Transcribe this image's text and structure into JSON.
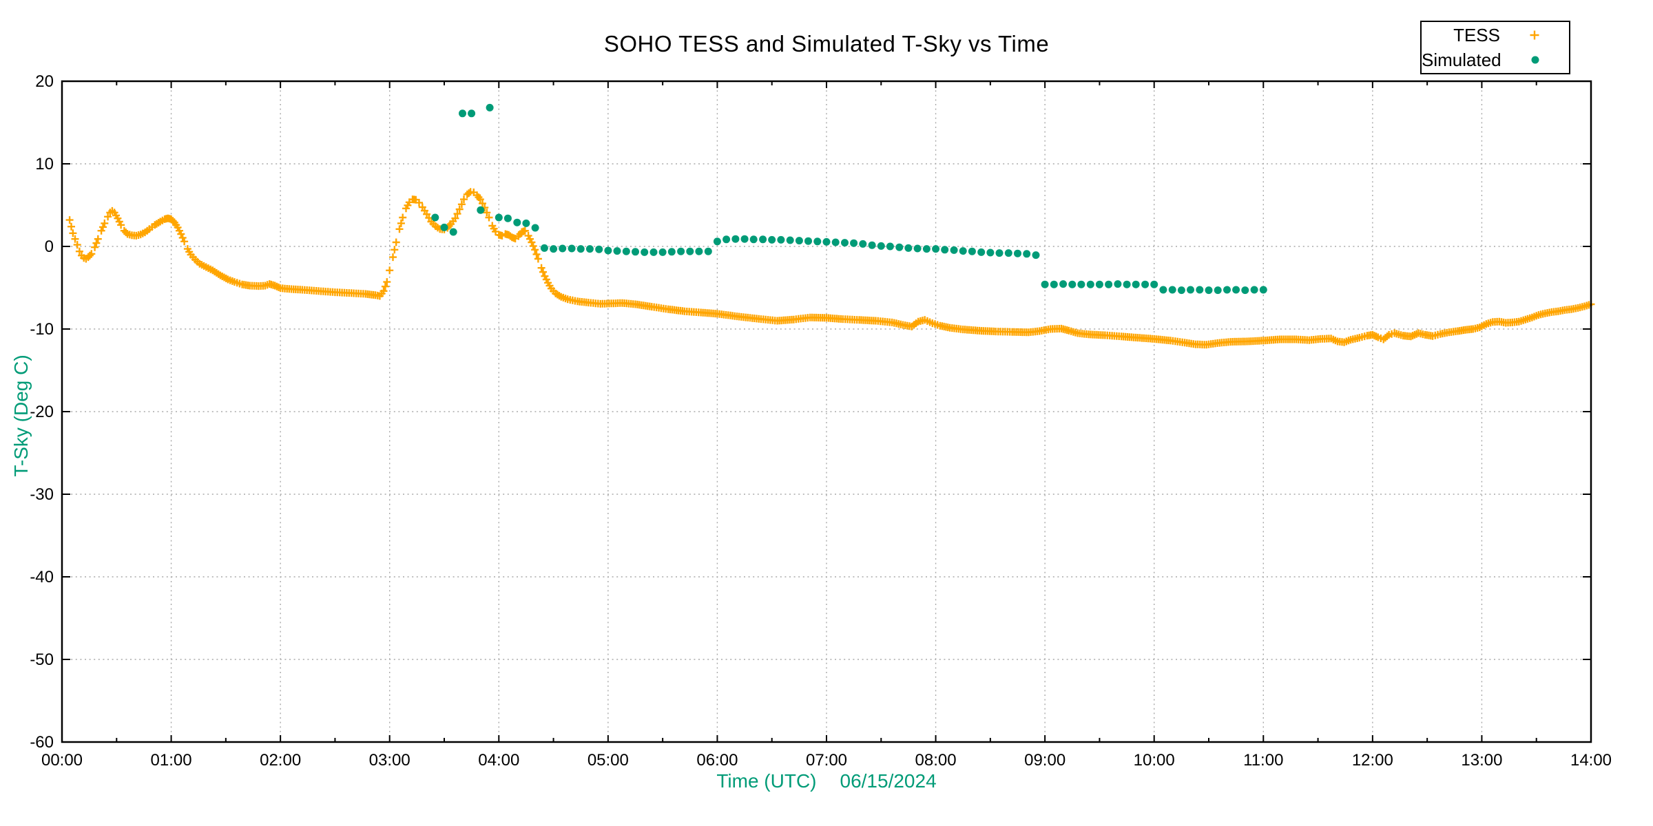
{
  "chart_data": {
    "type": "scatter",
    "title": "SOHO TESS and Simulated T-Sky vs Time",
    "xlabel": "Time (UTC)",
    "date_label": "06/15/2024",
    "ylabel": "T-Sky (Deg C)",
    "axis_label_color": "#009B77",
    "grid": true,
    "xlim": [
      0,
      14
    ],
    "ylim": [
      -60,
      20
    ],
    "x_tick_hours": [
      0,
      1,
      2,
      3,
      4,
      5,
      6,
      7,
      8,
      9,
      10,
      11,
      12,
      13,
      14
    ],
    "x_tick_labels": [
      "00:00",
      "01:00",
      "02:00",
      "03:00",
      "04:00",
      "05:00",
      "06:00",
      "07:00",
      "08:00",
      "09:00",
      "10:00",
      "11:00",
      "12:00",
      "13:00",
      "14:00"
    ],
    "x_minor_tick_step_hours": 0.5,
    "y_tick_values": [
      20,
      10,
      0,
      -10,
      -20,
      -30,
      -40,
      -50,
      -60
    ],
    "y_tick_labels": [
      "20",
      "10",
      "0",
      "-10",
      "-20",
      "-30",
      "-40",
      "-50",
      "-60"
    ],
    "legend": [
      {
        "name": "TESS",
        "marker": "plus",
        "color": "#FFA500"
      },
      {
        "name": "Simulated",
        "marker": "dot",
        "color": "#009B77"
      }
    ],
    "series": [
      {
        "name": "TESS",
        "marker": "plus",
        "color": "#FFA500",
        "sample_step_hours": 0.02,
        "points": [
          [
            0.07,
            3.2
          ],
          [
            0.1,
            1.6
          ],
          [
            0.12,
            0.9
          ],
          [
            0.14,
            0.2
          ],
          [
            0.16,
            -0.6
          ],
          [
            0.18,
            -1.1
          ],
          [
            0.2,
            -1.4
          ],
          [
            0.22,
            -1.5
          ],
          [
            0.24,
            -1.3
          ],
          [
            0.27,
            -0.9
          ],
          [
            0.3,
            -0.1
          ],
          [
            0.33,
            0.9
          ],
          [
            0.36,
            1.9
          ],
          [
            0.39,
            2.8
          ],
          [
            0.42,
            3.6
          ],
          [
            0.44,
            4.1
          ],
          [
            0.46,
            4.3
          ],
          [
            0.48,
            4.1
          ],
          [
            0.51,
            3.4
          ],
          [
            0.54,
            2.6
          ],
          [
            0.57,
            1.9
          ],
          [
            0.6,
            1.5
          ],
          [
            0.64,
            1.35
          ],
          [
            0.68,
            1.3
          ],
          [
            0.72,
            1.45
          ],
          [
            0.76,
            1.7
          ],
          [
            0.8,
            2.1
          ],
          [
            0.85,
            2.6
          ],
          [
            0.9,
            3.0
          ],
          [
            0.94,
            3.3
          ],
          [
            0.97,
            3.4
          ],
          [
            1.0,
            3.3
          ],
          [
            1.03,
            2.9
          ],
          [
            1.06,
            2.3
          ],
          [
            1.09,
            1.5
          ],
          [
            1.12,
            0.6
          ],
          [
            1.15,
            -0.3
          ],
          [
            1.18,
            -1.0
          ],
          [
            1.22,
            -1.6
          ],
          [
            1.26,
            -2.1
          ],
          [
            1.32,
            -2.5
          ],
          [
            1.38,
            -2.9
          ],
          [
            1.45,
            -3.5
          ],
          [
            1.52,
            -4.0
          ],
          [
            1.58,
            -4.3
          ],
          [
            1.65,
            -4.6
          ],
          [
            1.72,
            -4.75
          ],
          [
            1.8,
            -4.8
          ],
          [
            1.86,
            -4.75
          ],
          [
            1.9,
            -4.55
          ],
          [
            1.95,
            -4.75
          ],
          [
            2.0,
            -5.05
          ],
          [
            2.08,
            -5.15
          ],
          [
            2.2,
            -5.25
          ],
          [
            2.35,
            -5.4
          ],
          [
            2.5,
            -5.55
          ],
          [
            2.65,
            -5.65
          ],
          [
            2.78,
            -5.75
          ],
          [
            2.87,
            -5.9
          ],
          [
            2.91,
            -6.0
          ],
          [
            2.945,
            -5.4
          ],
          [
            2.975,
            -4.3
          ],
          [
            3.0,
            -2.9
          ],
          [
            3.03,
            -1.3
          ],
          [
            3.06,
            0.5
          ],
          [
            3.09,
            2.1
          ],
          [
            3.12,
            3.5
          ],
          [
            3.15,
            4.6
          ],
          [
            3.18,
            5.35
          ],
          [
            3.21,
            5.7
          ],
          [
            3.24,
            5.65
          ],
          [
            3.27,
            5.3
          ],
          [
            3.3,
            4.75
          ],
          [
            3.34,
            3.9
          ],
          [
            3.38,
            3.0
          ],
          [
            3.42,
            2.45
          ],
          [
            3.46,
            2.1
          ],
          [
            3.5,
            2.05
          ],
          [
            3.53,
            2.25
          ],
          [
            3.56,
            2.7
          ],
          [
            3.6,
            3.4
          ],
          [
            3.64,
            4.5
          ],
          [
            3.68,
            5.7
          ],
          [
            3.71,
            6.3
          ],
          [
            3.74,
            6.6
          ],
          [
            3.77,
            6.55
          ],
          [
            3.8,
            6.2
          ],
          [
            3.83,
            5.7
          ],
          [
            3.87,
            4.7
          ],
          [
            3.91,
            3.5
          ],
          [
            3.94,
            2.5
          ],
          [
            3.97,
            1.8
          ],
          [
            4.0,
            1.4
          ],
          [
            4.03,
            1.3
          ],
          [
            4.06,
            1.5
          ],
          [
            4.09,
            1.4
          ],
          [
            4.12,
            1.1
          ],
          [
            4.15,
            0.95
          ],
          [
            4.18,
            1.25
          ],
          [
            4.21,
            1.75
          ],
          [
            4.24,
            1.9
          ],
          [
            4.27,
            1.3
          ],
          [
            4.3,
            0.5
          ],
          [
            4.33,
            -0.4
          ],
          [
            4.36,
            -1.5
          ],
          [
            4.39,
            -2.6
          ],
          [
            4.42,
            -3.6
          ],
          [
            4.45,
            -4.4
          ],
          [
            4.48,
            -5.1
          ],
          [
            4.52,
            -5.7
          ],
          [
            4.57,
            -6.1
          ],
          [
            4.63,
            -6.4
          ],
          [
            4.72,
            -6.65
          ],
          [
            4.82,
            -6.8
          ],
          [
            4.93,
            -6.95
          ],
          [
            5.03,
            -6.9
          ],
          [
            5.13,
            -6.85
          ],
          [
            5.25,
            -7.0
          ],
          [
            5.4,
            -7.3
          ],
          [
            5.55,
            -7.6
          ],
          [
            5.7,
            -7.85
          ],
          [
            5.85,
            -8.0
          ],
          [
            6.0,
            -8.15
          ],
          [
            6.2,
            -8.5
          ],
          [
            6.4,
            -8.8
          ],
          [
            6.55,
            -9.0
          ],
          [
            6.7,
            -8.85
          ],
          [
            6.85,
            -8.6
          ],
          [
            7.0,
            -8.65
          ],
          [
            7.15,
            -8.8
          ],
          [
            7.3,
            -8.9
          ],
          [
            7.45,
            -9.0
          ],
          [
            7.6,
            -9.2
          ],
          [
            7.7,
            -9.5
          ],
          [
            7.78,
            -9.7
          ],
          [
            7.84,
            -9.1
          ],
          [
            7.9,
            -8.9
          ],
          [
            7.97,
            -9.3
          ],
          [
            8.04,
            -9.6
          ],
          [
            8.13,
            -9.85
          ],
          [
            8.25,
            -10.05
          ],
          [
            8.4,
            -10.2
          ],
          [
            8.55,
            -10.3
          ],
          [
            8.7,
            -10.35
          ],
          [
            8.85,
            -10.4
          ],
          [
            8.95,
            -10.25
          ],
          [
            9.05,
            -10.0
          ],
          [
            9.15,
            -9.95
          ],
          [
            9.22,
            -10.2
          ],
          [
            9.3,
            -10.5
          ],
          [
            9.4,
            -10.65
          ],
          [
            9.55,
            -10.75
          ],
          [
            9.7,
            -10.9
          ],
          [
            9.85,
            -11.05
          ],
          [
            10.0,
            -11.2
          ],
          [
            10.15,
            -11.4
          ],
          [
            10.28,
            -11.65
          ],
          [
            10.38,
            -11.85
          ],
          [
            10.48,
            -11.9
          ],
          [
            10.58,
            -11.7
          ],
          [
            10.7,
            -11.55
          ],
          [
            10.85,
            -11.5
          ],
          [
            11.0,
            -11.4
          ],
          [
            11.15,
            -11.25
          ],
          [
            11.3,
            -11.25
          ],
          [
            11.42,
            -11.35
          ],
          [
            11.52,
            -11.2
          ],
          [
            11.62,
            -11.15
          ],
          [
            11.68,
            -11.5
          ],
          [
            11.74,
            -11.6
          ],
          [
            11.8,
            -11.3
          ],
          [
            11.88,
            -11.05
          ],
          [
            11.95,
            -10.8
          ],
          [
            12.0,
            -10.7
          ],
          [
            12.05,
            -11.0
          ],
          [
            12.1,
            -11.25
          ],
          [
            12.15,
            -10.7
          ],
          [
            12.2,
            -10.5
          ],
          [
            12.28,
            -10.8
          ],
          [
            12.35,
            -10.9
          ],
          [
            12.42,
            -10.5
          ],
          [
            12.48,
            -10.7
          ],
          [
            12.55,
            -10.85
          ],
          [
            12.62,
            -10.6
          ],
          [
            12.7,
            -10.4
          ],
          [
            12.78,
            -10.25
          ],
          [
            12.85,
            -10.1
          ],
          [
            12.92,
            -10.0
          ],
          [
            12.98,
            -9.8
          ],
          [
            13.04,
            -9.4
          ],
          [
            13.1,
            -9.15
          ],
          [
            13.16,
            -9.1
          ],
          [
            13.22,
            -9.25
          ],
          [
            13.28,
            -9.2
          ],
          [
            13.34,
            -9.1
          ],
          [
            13.4,
            -8.85
          ],
          [
            13.46,
            -8.6
          ],
          [
            13.52,
            -8.3
          ],
          [
            13.58,
            -8.1
          ],
          [
            13.64,
            -7.95
          ],
          [
            13.7,
            -7.85
          ],
          [
            13.76,
            -7.7
          ],
          [
            13.82,
            -7.6
          ],
          [
            13.88,
            -7.45
          ],
          [
            13.94,
            -7.25
          ],
          [
            14.0,
            -7.0
          ]
        ]
      },
      {
        "name": "Simulated",
        "marker": "dot",
        "color": "#009B77",
        "points": [
          [
            3.417,
            3.5
          ],
          [
            3.5,
            2.3
          ],
          [
            3.583,
            1.75
          ],
          [
            3.667,
            16.1
          ],
          [
            3.75,
            16.1
          ],
          [
            3.833,
            4.4
          ],
          [
            3.917,
            16.8
          ],
          [
            4.0,
            3.5
          ],
          [
            4.083,
            3.4
          ],
          [
            4.167,
            2.9
          ],
          [
            4.25,
            2.8
          ],
          [
            4.333,
            2.25
          ],
          [
            4.417,
            -0.2
          ],
          [
            4.5,
            -0.3
          ],
          [
            4.583,
            -0.25
          ],
          [
            4.667,
            -0.25
          ],
          [
            4.75,
            -0.3
          ],
          [
            4.833,
            -0.3
          ],
          [
            4.917,
            -0.35
          ],
          [
            5.0,
            -0.5
          ],
          [
            5.083,
            -0.55
          ],
          [
            5.167,
            -0.6
          ],
          [
            5.25,
            -0.65
          ],
          [
            5.333,
            -0.7
          ],
          [
            5.417,
            -0.7
          ],
          [
            5.5,
            -0.7
          ],
          [
            5.583,
            -0.65
          ],
          [
            5.667,
            -0.6
          ],
          [
            5.75,
            -0.6
          ],
          [
            5.833,
            -0.6
          ],
          [
            5.917,
            -0.6
          ],
          [
            6.0,
            0.6
          ],
          [
            6.083,
            0.85
          ],
          [
            6.167,
            0.9
          ],
          [
            6.25,
            0.9
          ],
          [
            6.333,
            0.85
          ],
          [
            6.417,
            0.85
          ],
          [
            6.5,
            0.8
          ],
          [
            6.583,
            0.8
          ],
          [
            6.667,
            0.75
          ],
          [
            6.75,
            0.7
          ],
          [
            6.833,
            0.65
          ],
          [
            6.917,
            0.6
          ],
          [
            7.0,
            0.55
          ],
          [
            7.083,
            0.5
          ],
          [
            7.167,
            0.45
          ],
          [
            7.25,
            0.4
          ],
          [
            7.333,
            0.3
          ],
          [
            7.417,
            0.15
          ],
          [
            7.5,
            0.05
          ],
          [
            7.583,
            0.0
          ],
          [
            7.667,
            -0.1
          ],
          [
            7.75,
            -0.2
          ],
          [
            7.833,
            -0.25
          ],
          [
            7.917,
            -0.3
          ],
          [
            8.0,
            -0.3
          ],
          [
            8.083,
            -0.4
          ],
          [
            8.167,
            -0.45
          ],
          [
            8.25,
            -0.55
          ],
          [
            8.333,
            -0.6
          ],
          [
            8.417,
            -0.7
          ],
          [
            8.5,
            -0.75
          ],
          [
            8.583,
            -0.8
          ],
          [
            8.667,
            -0.8
          ],
          [
            8.75,
            -0.85
          ],
          [
            8.833,
            -0.9
          ],
          [
            8.917,
            -1.05
          ],
          [
            9.0,
            -4.6
          ],
          [
            9.083,
            -4.6
          ],
          [
            9.167,
            -4.55
          ],
          [
            9.25,
            -4.6
          ],
          [
            9.333,
            -4.6
          ],
          [
            9.417,
            -4.6
          ],
          [
            9.5,
            -4.6
          ],
          [
            9.583,
            -4.6
          ],
          [
            9.667,
            -4.55
          ],
          [
            9.75,
            -4.6
          ],
          [
            9.833,
            -4.6
          ],
          [
            9.917,
            -4.6
          ],
          [
            10.0,
            -4.6
          ],
          [
            10.083,
            -5.25
          ],
          [
            10.167,
            -5.25
          ],
          [
            10.25,
            -5.3
          ],
          [
            10.333,
            -5.25
          ],
          [
            10.417,
            -5.25
          ],
          [
            10.5,
            -5.3
          ],
          [
            10.583,
            -5.3
          ],
          [
            10.667,
            -5.25
          ],
          [
            10.75,
            -5.25
          ],
          [
            10.833,
            -5.3
          ],
          [
            10.917,
            -5.25
          ],
          [
            11.0,
            -5.25
          ]
        ]
      }
    ]
  }
}
